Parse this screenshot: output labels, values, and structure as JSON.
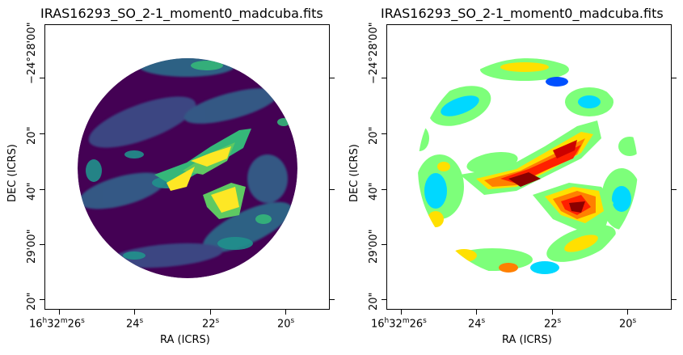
{
  "panels": [
    {
      "title": "IRAS16293_SO_2-1_moment0_madcuba.fits",
      "colormap": "viridis",
      "ylabel": "DEC (ICRS)",
      "xlabel": "RA (ICRS)",
      "yticks": [
        "−24°28'00\"",
        "20\"",
        "40\"",
        "29'00\"",
        "20\""
      ],
      "xticks": [
        {
          "h": "16",
          "m": "32",
          "s": "26"
        },
        {
          "s": "24"
        },
        {
          "s": "22"
        },
        {
          "s": "20"
        }
      ]
    },
    {
      "title": "IRAS16293_SO_2-1_moment0_madcuba.fits",
      "colormap": "jet",
      "ylabel": "DEC (ICRS)",
      "xlabel": "RA (ICRS)",
      "yticks": [
        "−24°28'00\"",
        "20\"",
        "40\"",
        "29'00\"",
        "20\""
      ],
      "xticks": [
        {
          "h": "16",
          "m": "32",
          "s": "26"
        },
        {
          "s": "24"
        },
        {
          "s": "22"
        },
        {
          "s": "20"
        }
      ]
    }
  ],
  "colors": {
    "viridis_background": "#440154",
    "viridis_mid": "#31688e",
    "viridis_green": "#35b779",
    "viridis_yellow": "#fde725",
    "jet_blue": "#0050ff",
    "jet_cyan": "#00d8ff",
    "jet_green": "#7dff7a",
    "jet_yellow": "#ffe000",
    "jet_red": "#ff2000",
    "jet_darkred": "#8b0000"
  }
}
